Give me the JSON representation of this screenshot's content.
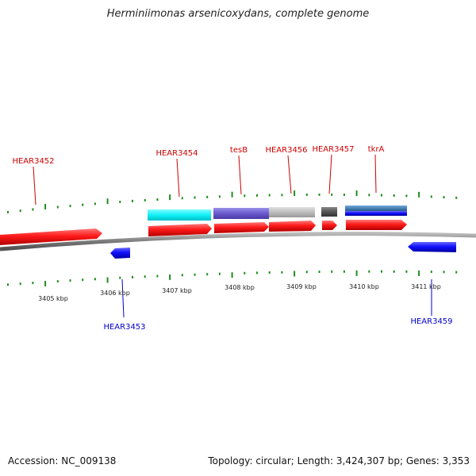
{
  "title": "Herminiimonas arsenicoxydans, complete genome",
  "footer": {
    "accession": "Accession: NC_009138",
    "topology": "Topology: circular; Length: 3,424,307 bp; Genes: 3,353"
  },
  "colors": {
    "forward_gene": "#ff0000",
    "reverse_gene": "#0000ff",
    "tick": "#228b22",
    "backbone": "#888888"
  },
  "scale_labels": [
    "3405 kbp",
    "3406 kbp",
    "3407 kbp",
    "3408 kbp",
    "3409 kbp",
    "3410 kbp",
    "3411 kbp"
  ],
  "gene_labels": {
    "forward": [
      "HEAR3452",
      "HEAR3454",
      "tesB",
      "HEAR3456",
      "HEAR3457",
      "tkrA"
    ],
    "reverse": [
      "HEAR3453",
      "HEAR3459"
    ]
  }
}
